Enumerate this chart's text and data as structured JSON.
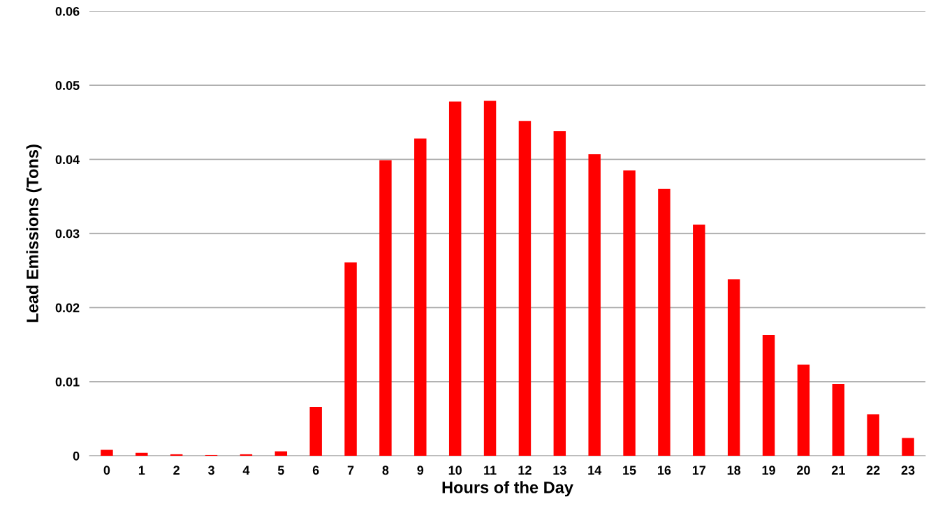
{
  "chart_data": {
    "type": "bar",
    "xlabel": "Hours of the Day",
    "ylabel": "Lead Emissions (Tons)",
    "categories": [
      "0",
      "1",
      "2",
      "3",
      "4",
      "5",
      "6",
      "7",
      "8",
      "9",
      "10",
      "11",
      "12",
      "13",
      "14",
      "15",
      "16",
      "17",
      "18",
      "19",
      "20",
      "21",
      "22",
      "23"
    ],
    "values": [
      0.0008,
      0.0004,
      0.0002,
      0.0001,
      0.0002,
      0.0006,
      0.0066,
      0.0261,
      0.0399,
      0.0428,
      0.0478,
      0.0479,
      0.0452,
      0.0438,
      0.0407,
      0.0385,
      0.036,
      0.0312,
      0.0238,
      0.0163,
      0.0123,
      0.0097,
      0.0056,
      0.0024
    ],
    "color": "#ff0000",
    "ylim": [
      0,
      0.06
    ],
    "yticks": [
      {
        "value": 0,
        "label": "0"
      },
      {
        "value": 0.01,
        "label": "0.01"
      },
      {
        "value": 0.02,
        "label": "0.02"
      },
      {
        "value": 0.03,
        "label": "0.03"
      },
      {
        "value": 0.04,
        "label": "0.04"
      },
      {
        "value": 0.05,
        "label": "0.05"
      },
      {
        "value": 0.06,
        "label": "0.06"
      }
    ],
    "grid": "y"
  }
}
